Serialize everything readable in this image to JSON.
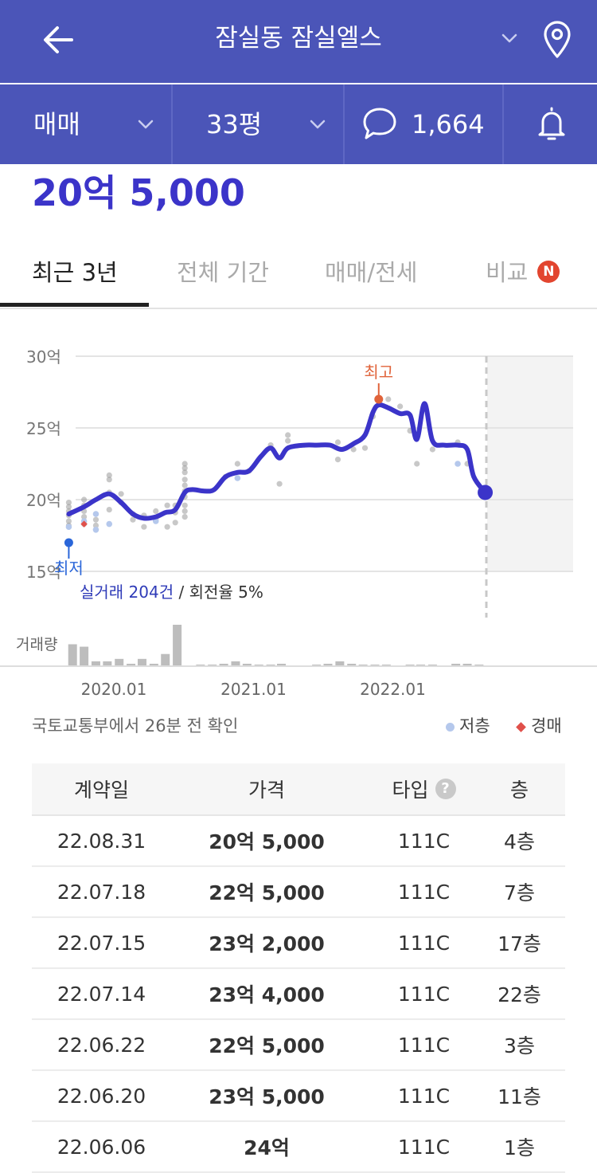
{
  "header": {
    "title": "잠실동 잠실엘스",
    "back_icon": "arrow-left-icon",
    "location_icon": "map-pin-icon",
    "dropdown_icon": "chevron-down-icon"
  },
  "subbar": {
    "trade_type": "매매",
    "area": "33평",
    "comment_count": "1,664",
    "comment_icon": "speech-bubble-icon",
    "alert_icon": "bell-icon"
  },
  "price": "20억 5,000",
  "tabs": [
    {
      "label": "최근 3년",
      "active": true
    },
    {
      "label": "전체 기간",
      "active": false
    },
    {
      "label": "매매/전세",
      "active": false
    },
    {
      "label": "비교",
      "active": false,
      "badge": "N"
    }
  ],
  "colors": {
    "header_bg": "#4b55b8",
    "accent": "#3b34c9",
    "high_marker": "#e0633a",
    "low_marker": "#2a66d9",
    "low_floor_dot": "#b5c8ec",
    "auction": "#e0504a"
  },
  "chart_data": {
    "type": "line",
    "y_unit": "억",
    "y_ticks": [
      "30억",
      "25억",
      "20억",
      "15억"
    ],
    "ylim": [
      15,
      30
    ],
    "x_ticks": [
      "2020.01",
      "2021.01",
      "2022.01"
    ],
    "high_label": "최고",
    "low_label": "최저",
    "high_value": 27.0,
    "low_value": 17.0,
    "latest_value": 20.5,
    "summary_count": "실거래 204건",
    "summary_rate": " / 회전율 5%",
    "volume_label": "거래량",
    "series": [
      {
        "values": [
          [
            "2019-09-05",
            19.0
          ],
          [
            "2019-10-15",
            19.5
          ],
          [
            "2019-11-15",
            20.0
          ],
          [
            "2019-12-20",
            20.4
          ],
          [
            "2020-01-20",
            19.8
          ],
          [
            "2020-02-20",
            19.0
          ],
          [
            "2020-03-20",
            18.7
          ],
          [
            "2020-04-20",
            18.8
          ],
          [
            "2020-05-15",
            19.1
          ],
          [
            "2020-06-10",
            19.3
          ],
          [
            "2020-07-05",
            20.5
          ],
          [
            "2020-07-25",
            20.7
          ],
          [
            "2020-08-25",
            20.6
          ],
          [
            "2020-09-20",
            20.7
          ],
          [
            "2020-10-20",
            21.6
          ],
          [
            "2020-11-20",
            21.9
          ],
          [
            "2020-12-20",
            22.0
          ],
          [
            "2021-01-20",
            23.0
          ],
          [
            "2021-02-15",
            23.6
          ],
          [
            "2021-03-10",
            22.9
          ],
          [
            "2021-04-01",
            23.6
          ],
          [
            "2021-05-15",
            23.8
          ],
          [
            "2021-06-15",
            23.8
          ],
          [
            "2021-07-20",
            23.8
          ],
          [
            "2021-08-20",
            23.5
          ],
          [
            "2021-09-20",
            23.9
          ],
          [
            "2021-10-20",
            24.5
          ],
          [
            "2021-11-10",
            26.1
          ],
          [
            "2021-11-25",
            26.6
          ],
          [
            "2021-12-20",
            26.4
          ],
          [
            "2022-01-20",
            26.0
          ],
          [
            "2022-02-15",
            25.9
          ],
          [
            "2022-03-05",
            24.2
          ],
          [
            "2022-03-25",
            26.7
          ],
          [
            "2022-04-15",
            24.1
          ],
          [
            "2022-05-15",
            23.8
          ],
          [
            "2022-06-20",
            23.8
          ],
          [
            "2022-07-15",
            23.5
          ],
          [
            "2022-08-01",
            21.6
          ],
          [
            "2022-08-31",
            20.5
          ]
        ]
      }
    ],
    "scatter": [
      [
        "2019-09-05",
        19.8
      ],
      [
        "2019-09-05",
        19.5
      ],
      [
        "2019-09-05",
        19.2
      ],
      [
        "2019-09-05",
        18.9
      ],
      [
        "2019-09-05",
        18.5
      ],
      [
        "2019-09-05",
        18.2
      ],
      [
        "2019-10-15",
        20.0
      ],
      [
        "2019-10-15",
        19.6
      ],
      [
        "2019-10-15",
        19.2
      ],
      [
        "2019-10-15",
        18.8
      ],
      [
        "2019-10-15",
        18.3
      ],
      [
        "2019-11-15",
        18.6
      ],
      [
        "2019-11-15",
        18.2
      ],
      [
        "2019-12-20",
        21.7
      ],
      [
        "2019-12-20",
        21.4
      ],
      [
        "2019-12-20",
        20.5
      ],
      [
        "2019-12-20",
        19.3
      ],
      [
        "2020-01-20",
        20.4
      ],
      [
        "2020-01-20",
        19.8
      ],
      [
        "2020-02-20",
        19.0
      ],
      [
        "2020-02-20",
        18.6
      ],
      [
        "2020-03-20",
        18.9
      ],
      [
        "2020-03-20",
        18.1
      ],
      [
        "2020-04-20",
        19.2
      ],
      [
        "2020-04-20",
        18.6
      ],
      [
        "2020-05-20",
        19.6
      ],
      [
        "2020-05-20",
        18.1
      ],
      [
        "2020-06-10",
        19.6
      ],
      [
        "2020-06-10",
        19.1
      ],
      [
        "2020-06-10",
        18.4
      ],
      [
        "2020-07-05",
        22.5
      ],
      [
        "2020-07-05",
        22.2
      ],
      [
        "2020-07-05",
        21.9
      ],
      [
        "2020-07-05",
        21.4
      ],
      [
        "2020-07-05",
        21.0
      ],
      [
        "2020-07-05",
        20.6
      ],
      [
        "2020-07-05",
        20.2
      ],
      [
        "2020-07-05",
        19.6
      ],
      [
        "2020-07-05",
        19.2
      ],
      [
        "2020-07-05",
        18.8
      ],
      [
        "2020-10-20",
        21.6
      ],
      [
        "2020-11-20",
        22.5
      ],
      [
        "2020-11-20",
        21.5
      ],
      [
        "2020-12-20",
        22.0
      ],
      [
        "2021-02-15",
        23.8
      ],
      [
        "2021-03-10",
        21.1
      ],
      [
        "2021-04-01",
        24.5
      ],
      [
        "2021-04-01",
        24.1
      ],
      [
        "2021-08-10",
        24.0
      ],
      [
        "2021-08-10",
        22.8
      ],
      [
        "2021-09-20",
        23.5
      ],
      [
        "2021-10-20",
        23.6
      ],
      [
        "2021-11-10",
        25.8
      ],
      [
        "2021-12-20",
        27.0
      ],
      [
        "2022-01-20",
        26.5
      ],
      [
        "2022-02-15",
        24.8
      ],
      [
        "2022-03-05",
        22.5
      ],
      [
        "2022-04-15",
        23.5
      ],
      [
        "2022-06-20",
        24.0
      ],
      [
        "2022-07-15",
        22.5
      ]
    ],
    "low_floor_points": [
      [
        "2019-09-05",
        18.1
      ],
      [
        "2019-10-15",
        18.5
      ],
      [
        "2019-11-15",
        19.0
      ],
      [
        "2019-11-15",
        17.9
      ],
      [
        "2019-12-20",
        18.3
      ],
      [
        "2020-04-20",
        18.5
      ],
      [
        "2020-11-20",
        21.5
      ],
      [
        "2022-06-20",
        22.5
      ]
    ],
    "auction_points": [
      [
        "2019-10-15",
        18.3
      ]
    ],
    "volume": [
      [
        "2019-09",
        9
      ],
      [
        "2019-10",
        8
      ],
      [
        "2019-11",
        2
      ],
      [
        "2019-12",
        2
      ],
      [
        "2020-01",
        3
      ],
      [
        "2020-02",
        1
      ],
      [
        "2020-03",
        3
      ],
      [
        "2020-04",
        1
      ],
      [
        "2020-05",
        5
      ],
      [
        "2020-06",
        17
      ],
      [
        "2020-08",
        0.3
      ],
      [
        "2020-09",
        0.3
      ],
      [
        "2020-10",
        1
      ],
      [
        "2020-11",
        2
      ],
      [
        "2020-12",
        1
      ],
      [
        "2021-01",
        0.3
      ],
      [
        "2021-02",
        0.3
      ],
      [
        "2021-03",
        1
      ],
      [
        "2021-06",
        0.3
      ],
      [
        "2021-07",
        1
      ],
      [
        "2021-08",
        2
      ],
      [
        "2021-09",
        1
      ],
      [
        "2021-10",
        0.3
      ],
      [
        "2021-11",
        0.3
      ],
      [
        "2021-12",
        0.3
      ],
      [
        "2022-02",
        0.3
      ],
      [
        "2022-03",
        0.3
      ],
      [
        "2022-04",
        0.3
      ],
      [
        "2022-06",
        1
      ],
      [
        "2022-07",
        1
      ],
      [
        "2022-08",
        0.3
      ]
    ]
  },
  "source_text": "국토교통부에서 26분 전 확인",
  "legend": {
    "low_floor": "저층",
    "auction": "경매"
  },
  "table": {
    "headers": {
      "date": "계약일",
      "price": "가격",
      "type": "타입",
      "floor": "층"
    },
    "help_icon": "question-mark-icon",
    "rows": [
      {
        "date": "22.08.31",
        "price": "20억 5,000",
        "type": "111C",
        "floor": "4층"
      },
      {
        "date": "22.07.18",
        "price": "22억 5,000",
        "type": "111C",
        "floor": "7층"
      },
      {
        "date": "22.07.15",
        "price": "23억 2,000",
        "type": "111C",
        "floor": "17층"
      },
      {
        "date": "22.07.14",
        "price": "23억 4,000",
        "type": "111C",
        "floor": "22층"
      },
      {
        "date": "22.06.22",
        "price": "22억 5,000",
        "type": "111C",
        "floor": "3층"
      },
      {
        "date": "22.06.20",
        "price": "23억 5,000",
        "type": "111C",
        "floor": "11층"
      },
      {
        "date": "22.06.06",
        "price": "24억",
        "type": "111C",
        "floor": "1층"
      }
    ]
  }
}
